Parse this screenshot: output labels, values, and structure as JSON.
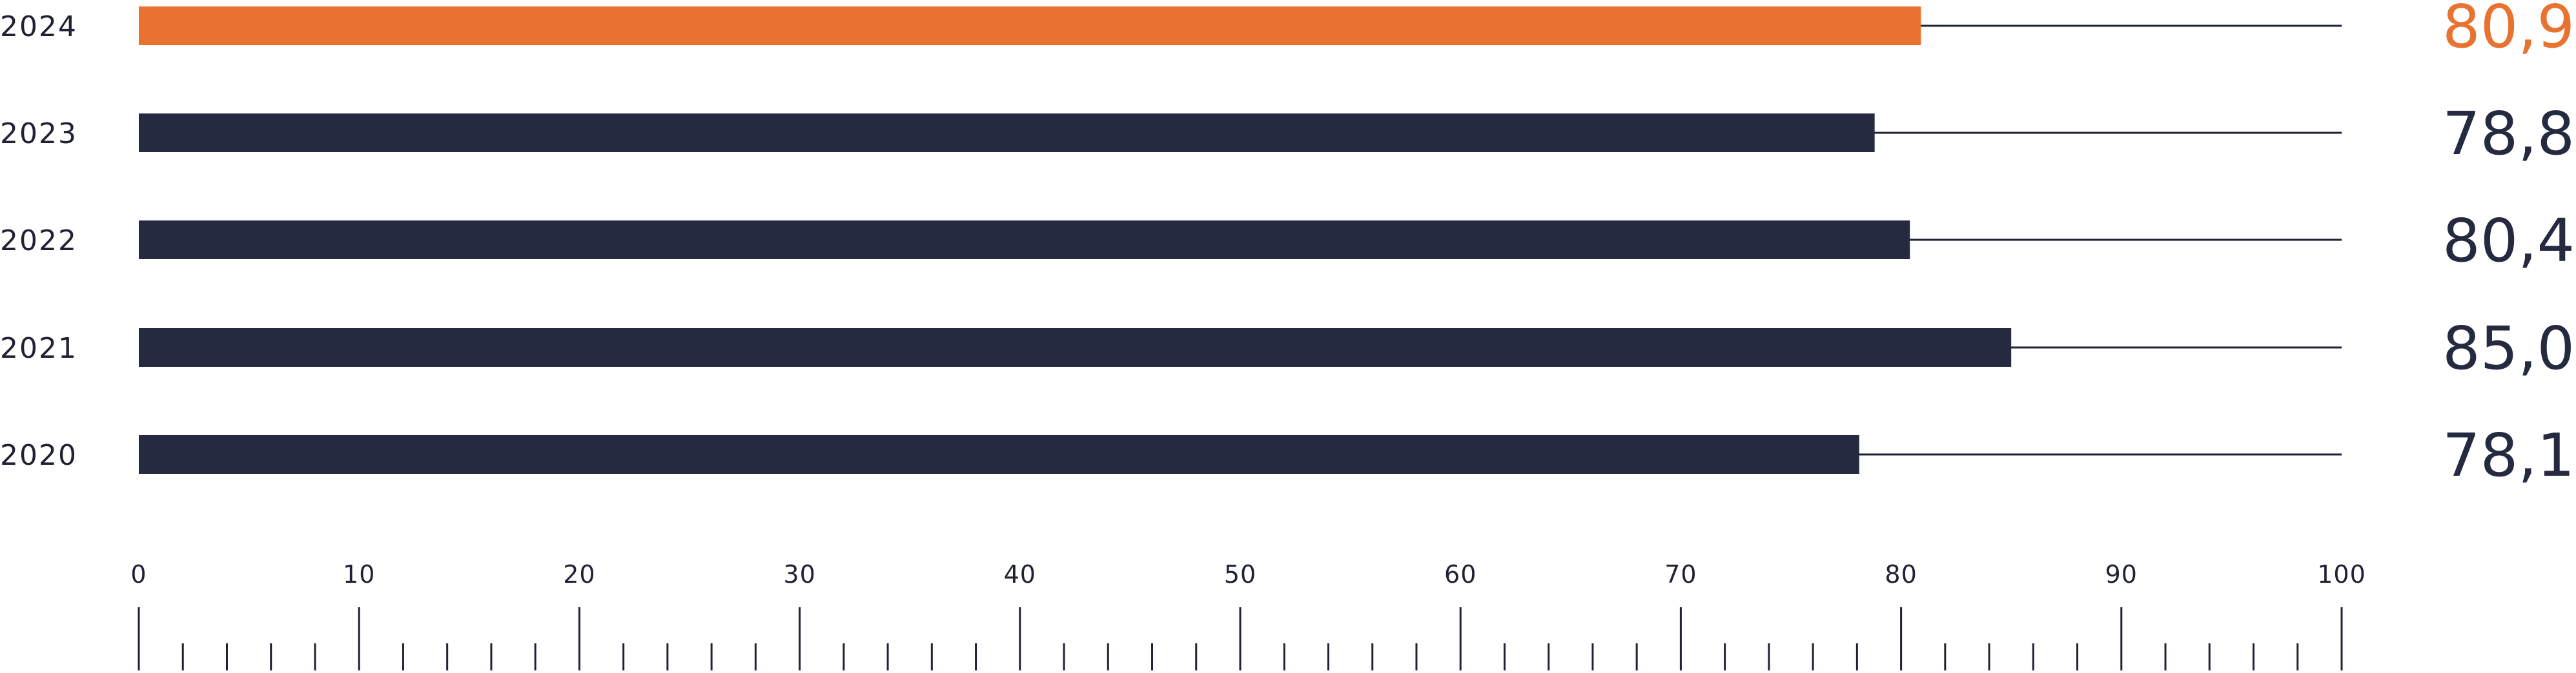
{
  "chart_data": {
    "type": "bar",
    "orientation": "horizontal",
    "categories": [
      "2024",
      "2023",
      "2022",
      "2021",
      "2020"
    ],
    "values": [
      80.9,
      78.8,
      80.4,
      85.0,
      78.1
    ],
    "value_labels": [
      "80,9",
      "78,8",
      "80,4",
      "85,0",
      "78,1"
    ],
    "xlim": [
      0,
      100
    ],
    "x_ticks": [
      0,
      10,
      20,
      30,
      40,
      50,
      60,
      70,
      80,
      90,
      100
    ],
    "x_tick_labels": [
      "0",
      "10",
      "20",
      "30",
      "40",
      "50",
      "60",
      "70",
      "80",
      "90",
      "100"
    ],
    "minor_tick_step": 2,
    "grid": false,
    "title": "",
    "xlabel": "",
    "ylabel": "",
    "colors": {
      "highlight": "#e8722f",
      "default": "#252a40",
      "text": "#1f2233",
      "track": "#1f2233"
    },
    "highlight_category": "2024"
  }
}
